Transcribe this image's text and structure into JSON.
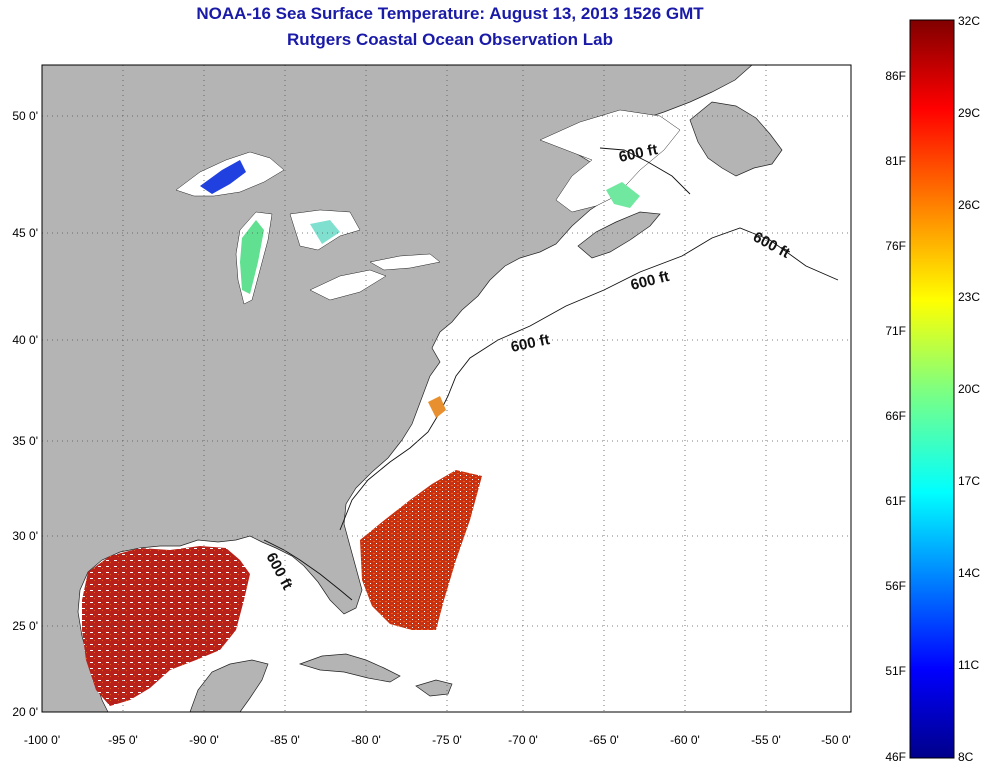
{
  "title": "NOAA-16 Sea Surface Temperature:  August 13, 2013 1526 GMT",
  "subtitle": "Rutgers Coastal Ocean Observation Lab",
  "map": {
    "lon_ticks": [
      "-100 0'",
      "-95 0'",
      "-90 0'",
      "-85 0'",
      "-80 0'",
      "-75 0'",
      "-70 0'",
      "-65 0'",
      "-60 0'",
      "-55 0'",
      "-50 0'"
    ],
    "lat_ticks": [
      "50 0'",
      "45 0'",
      "40 0'",
      "35 0'",
      "30 0'",
      "25 0'",
      "20 0'"
    ],
    "contour_label": "600 ft",
    "colors": {
      "land": "#b4b4b4",
      "ocean": "#ffffff",
      "grid": "#555555"
    }
  },
  "colorbar": {
    "celsius_labels": [
      "32C",
      "29C",
      "26C",
      "23C",
      "20C",
      "17C",
      "14C",
      "11C",
      "8C"
    ],
    "fahrenheit_labels": [
      "86F",
      "81F",
      "76F",
      "71F",
      "66F",
      "61F",
      "56F",
      "51F",
      "46F"
    ]
  }
}
